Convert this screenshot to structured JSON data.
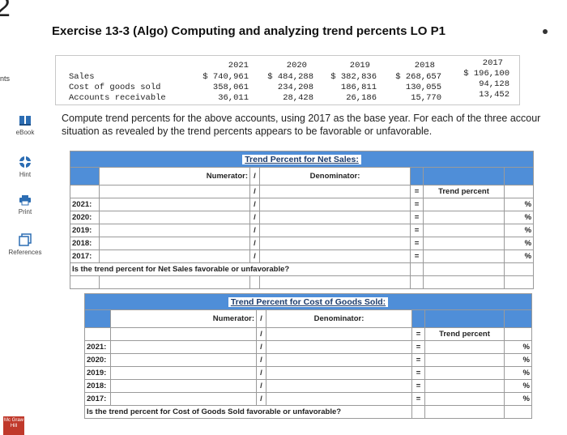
{
  "question_number": "2",
  "nav_partial": "nts",
  "title": "Exercise 13-3 (Algo) Computing and analyzing trend percents LO P1",
  "sidebar": [
    {
      "label": "eBook",
      "icon": "ebook-icon"
    },
    {
      "label": "Hint",
      "icon": "hint-icon"
    },
    {
      "label": "Print",
      "icon": "print-icon"
    },
    {
      "label": "References",
      "icon": "references-icon"
    }
  ],
  "years": [
    "2021",
    "2020",
    "2019",
    "2018",
    "2017"
  ],
  "accounts": [
    {
      "label": "Sales",
      "values": [
        "$ 740,961",
        "$ 484,288",
        "$ 382,836",
        "$ 268,657",
        "$ 196,100"
      ]
    },
    {
      "label": "Cost of goods sold",
      "values": [
        "358,061",
        "234,208",
        "186,811",
        "130,055",
        "94,128"
      ]
    },
    {
      "label": "Accounts receivable",
      "values": [
        "36,011",
        "28,428",
        "26,186",
        "15,770",
        "13,452"
      ]
    }
  ],
  "instructions": "Compute trend percents for the above accounts, using 2017 as the base year. For each of the three accour situation as revealed by the trend percents appears to be favorable or unfavorable.",
  "tables": [
    {
      "caption": "Trend Percent for Net Sales:",
      "numerator_label": "Numerator:",
      "slash": "/",
      "denominator_label": "Denominator:",
      "equals": "=",
      "trend_label": "Trend percent",
      "percent": "%",
      "rows": [
        "2021:",
        "2020:",
        "2019:",
        "2018:",
        "2017:"
      ],
      "question": "Is the trend percent for Net Sales favorable or unfavorable?"
    },
    {
      "caption": "Trend Percent for Cost of Goods Sold:",
      "numerator_label": "Numerator:",
      "slash": "/",
      "denominator_label": "Denominator:",
      "equals": "=",
      "trend_label": "Trend percent",
      "percent": "%",
      "rows": [
        "2021:",
        "2020:",
        "2019:",
        "2018:",
        "2017:"
      ],
      "question": "Is the trend percent for Cost of Goods Sold favorable or unfavorable?"
    }
  ],
  "logo_text": "Mc Graw Hill"
}
